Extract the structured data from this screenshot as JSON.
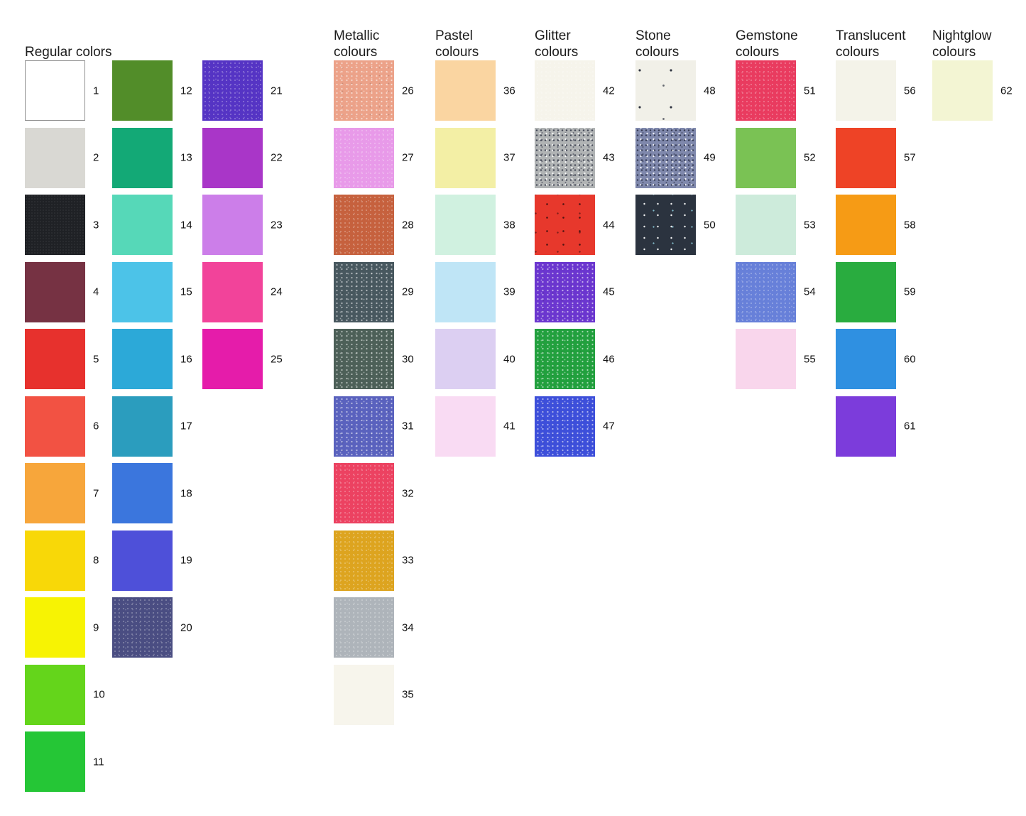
{
  "chart": {
    "background": "#ffffff",
    "groups": [
      {
        "key": "regular",
        "title_lines": [
          "Regular colors"
        ],
        "columns": [
          [
            {
              "number": "1",
              "color": "#ffffff",
              "border": "#8f8f8f",
              "texture": "none"
            },
            {
              "number": "2",
              "color": "#d9d8d3",
              "texture": "none"
            },
            {
              "number": "3",
              "color": "#1f2125",
              "texture": "noise-dark"
            },
            {
              "number": "4",
              "color": "#763243",
              "texture": "none"
            },
            {
              "number": "5",
              "color": "#e7312d",
              "texture": "none"
            },
            {
              "number": "6",
              "color": "#f25243",
              "texture": "none"
            },
            {
              "number": "7",
              "color": "#f7a63b",
              "texture": "none"
            },
            {
              "number": "8",
              "color": "#f8d808",
              "texture": "none"
            },
            {
              "number": "9",
              "color": "#f7f303",
              "texture": "none"
            },
            {
              "number": "10",
              "color": "#64d51b",
              "texture": "none"
            },
            {
              "number": "11",
              "color": "#25c636",
              "texture": "none"
            }
          ],
          [
            {
              "number": "12",
              "color": "#528d29",
              "texture": "none"
            },
            {
              "number": "13",
              "color": "#13a976",
              "texture": "none"
            },
            {
              "number": "14",
              "color": "#56d8b8",
              "texture": "none"
            },
            {
              "number": "15",
              "color": "#4cc3e8",
              "texture": "none"
            },
            {
              "number": "16",
              "color": "#2ca9d8",
              "texture": "none"
            },
            {
              "number": "17",
              "color": "#2b9dbe",
              "texture": "none"
            },
            {
              "number": "18",
              "color": "#3b76dd",
              "texture": "none"
            },
            {
              "number": "19",
              "color": "#4e50d9",
              "texture": "none"
            },
            {
              "number": "20",
              "color": "#4a4d82",
              "texture": "sparkle-soft"
            }
          ],
          [
            {
              "number": "21",
              "color": "#5534c4",
              "texture": "sparkle-soft"
            },
            {
              "number": "22",
              "color": "#a936c8",
              "texture": "none"
            },
            {
              "number": "23",
              "color": "#cc7ee9",
              "texture": "none"
            },
            {
              "number": "24",
              "color": "#f2439a",
              "texture": "none"
            },
            {
              "number": "25",
              "color": "#e51caa",
              "texture": "none"
            }
          ]
        ]
      },
      {
        "key": "metallic",
        "title_lines": [
          "Metallic",
          "colours"
        ],
        "columns": [
          [
            {
              "number": "26",
              "color": "#eca289",
              "texture": "sparkle"
            },
            {
              "number": "27",
              "color": "#e89ae9",
              "texture": "sparkle-soft"
            },
            {
              "number": "28",
              "color": "#c6613e",
              "texture": "sparkle-soft"
            },
            {
              "number": "29",
              "color": "#48585f",
              "texture": "sparkle"
            },
            {
              "number": "30",
              "color": "#4d6058",
              "texture": "sparkle"
            },
            {
              "number": "31",
              "color": "#5a62be",
              "texture": "sparkle"
            },
            {
              "number": "32",
              "color": "#ec4261",
              "texture": "sparkle-soft"
            },
            {
              "number": "33",
              "color": "#dda41f",
              "texture": "sparkle-soft"
            },
            {
              "number": "34",
              "color": "#aeb4ba",
              "texture": "sparkle-soft"
            },
            {
              "number": "35",
              "color": "#f7f5ec",
              "texture": "none"
            }
          ]
        ]
      },
      {
        "key": "pastel",
        "title_lines": [
          "Pastel",
          "colours"
        ],
        "columns": [
          [
            {
              "number": "36",
              "color": "#fad5a1",
              "texture": "none"
            },
            {
              "number": "37",
              "color": "#f3efa5",
              "texture": "none"
            },
            {
              "number": "38",
              "color": "#d0f1e0",
              "texture": "none"
            },
            {
              "number": "39",
              "color": "#bfe5f6",
              "texture": "none"
            },
            {
              "number": "40",
              "color": "#dccff2",
              "texture": "none"
            },
            {
              "number": "41",
              "color": "#f9dbf3",
              "texture": "none"
            }
          ]
        ]
      },
      {
        "key": "glitter",
        "title_lines": [
          "Glitter",
          "colours"
        ],
        "columns": [
          [
            {
              "number": "42",
              "color": "#f6f4eb",
              "texture": "sparkle-soft"
            },
            {
              "number": "43",
              "color": "#b0b3b4",
              "texture": "speckle-mixed"
            },
            {
              "number": "44",
              "color": "#e7382c",
              "texture": "speckle-dark-few"
            },
            {
              "number": "45",
              "color": "#6b36cf",
              "texture": "sparkle"
            },
            {
              "number": "46",
              "color": "#22a03e",
              "texture": "sparkle"
            },
            {
              "number": "47",
              "color": "#3d4fda",
              "texture": "sparkle"
            }
          ]
        ]
      },
      {
        "key": "stone",
        "title_lines": [
          "Stone",
          "colours"
        ],
        "columns": [
          [
            {
              "number": "48",
              "color": "#f1f0e8",
              "texture": "speckle-few"
            },
            {
              "number": "49",
              "color": "#7f88ac",
              "texture": "speckle-mixed"
            },
            {
              "number": "50",
              "color": "#2b333f",
              "texture": "sparkle-sparse"
            }
          ]
        ]
      },
      {
        "key": "gemstone",
        "title_lines": [
          "Gemstone",
          "colours"
        ],
        "columns": [
          [
            {
              "number": "51",
              "color": "#e93b5f",
              "texture": "sparkle-soft"
            },
            {
              "number": "52",
              "color": "#7ac254",
              "texture": "none"
            },
            {
              "number": "53",
              "color": "#cdebdb",
              "texture": "none"
            },
            {
              "number": "54",
              "color": "#6780d9",
              "texture": "sparkle-soft"
            },
            {
              "number": "55",
              "color": "#f9d6ec",
              "texture": "none"
            }
          ]
        ]
      },
      {
        "key": "translucent",
        "title_lines": [
          "Translucent",
          "colours"
        ],
        "columns": [
          [
            {
              "number": "56",
              "color": "#f4f3e9",
              "texture": "none"
            },
            {
              "number": "57",
              "color": "#ee4326",
              "texture": "none"
            },
            {
              "number": "58",
              "color": "#f69b15",
              "texture": "none"
            },
            {
              "number": "59",
              "color": "#29ac3f",
              "texture": "none"
            },
            {
              "number": "60",
              "color": "#2f90e1",
              "texture": "none"
            },
            {
              "number": "61",
              "color": "#7c3cdb",
              "texture": "none"
            }
          ]
        ]
      },
      {
        "key": "nightglow",
        "title_lines": [
          "Nightglow",
          "colours"
        ],
        "columns": [
          [
            {
              "number": "62",
              "color": "#f3f5d3",
              "texture": "none"
            }
          ]
        ]
      }
    ]
  }
}
